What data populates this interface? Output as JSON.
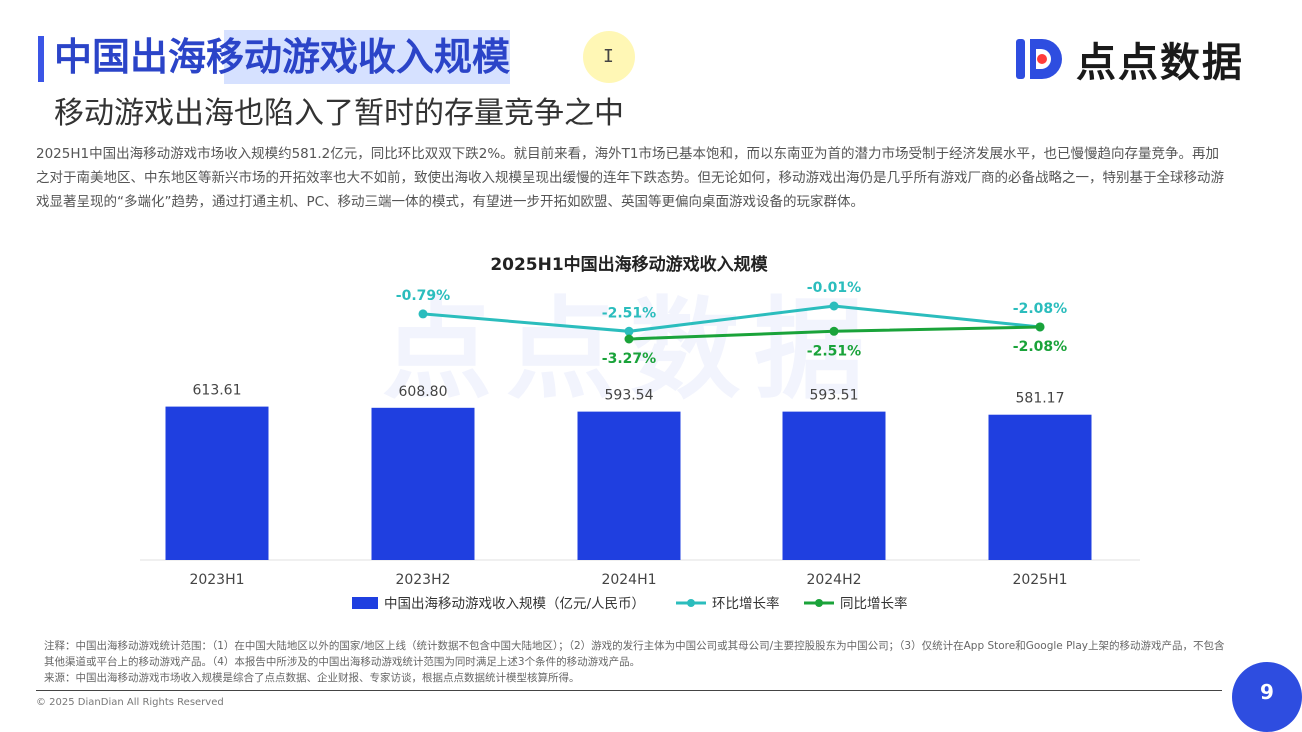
{
  "header": {
    "title": "中国出海移动游戏收入规模",
    "subtitle": "移动游戏出海也陷入了暂时的存量竞争之中"
  },
  "logo": {
    "text": "点点数据",
    "brand_color": "#2e4de0",
    "accent_color": "#ff3b3b"
  },
  "description": "2025H1中国出海移动游戏市场收入规模约581.2亿元，同比环比双双下跌2%。就目前来看，海外T1市场已基本饱和，而以东南亚为首的潜力市场受制于经济发展水平，也已慢慢趋向存量竞争。再加之对于南美地区、中东地区等新兴市场的开拓效率也大不如前，致使出海收入规模呈现出缓慢的连年下跌态势。但无论如何，移动游戏出海仍是几乎所有游戏厂商的必备战略之一，特别基于全球移动游戏显著呈现的“多端化”趋势，通过打通主机、PC、移动三端一体的模式，有望进一步开拓如欧盟、英国等更偏向桌面游戏设备的玩家群体。",
  "chart_data": {
    "type": "bar",
    "title": "2025H1中国出海移动游戏收入规模",
    "watermark": "点点数据",
    "categories": [
      "2023H1",
      "2023H2",
      "2024H1",
      "2024H2",
      "2025H1"
    ],
    "series": [
      {
        "name": "中国出海移动游戏收入规模（亿元/人民币）",
        "type": "bar",
        "color": "#1f3fe0",
        "values": [
          613.61,
          608.8,
          593.54,
          593.51,
          581.17
        ],
        "labels": [
          "613.61",
          "608.80",
          "593.54",
          "593.51",
          "581.17"
        ]
      },
      {
        "name": "环比增长率",
        "type": "line",
        "color": "#2bbdbd",
        "values": [
          null,
          -0.79,
          -2.51,
          -0.01,
          -2.08
        ],
        "labels": [
          null,
          "-0.79%",
          "-2.51%",
          "-0.01%",
          "-2.08%"
        ]
      },
      {
        "name": "同比增长率",
        "type": "line",
        "color": "#1aa33a",
        "values": [
          null,
          null,
          -3.27,
          -2.51,
          -2.08
        ],
        "labels": [
          null,
          null,
          "-3.27%",
          "-2.51%",
          "-2.08%"
        ]
      }
    ],
    "ylim_bar": [
      0,
      700
    ],
    "ylim_rate": [
      -8,
      0
    ],
    "legend_position": "bottom",
    "grid": false
  },
  "footnote": {
    "note": "注释：中国出海移动游戏统计范围：（1）在中国大陆地区以外的国家/地区上线（统计数据不包含中国大陆地区）；（2）游戏的发行主体为中国公司或其母公司/主要控股股东为中国公司；（3）仅统计在App Store和Google Play上架的移动游戏产品，不包含其他渠道或平台上的移动游戏产品。（4）本报告中所涉及的中国出海移动游戏统计范围为同时满足上述3个条件的移动游戏产品。",
    "source": "来源：中国出海移动游戏市场收入规模是综合了点点数据、企业财报、专家访谈，根据点点数据统计模型核算所得。"
  },
  "copyright": "© 2025 DianDian All Rights Reserved",
  "page_number": "9"
}
